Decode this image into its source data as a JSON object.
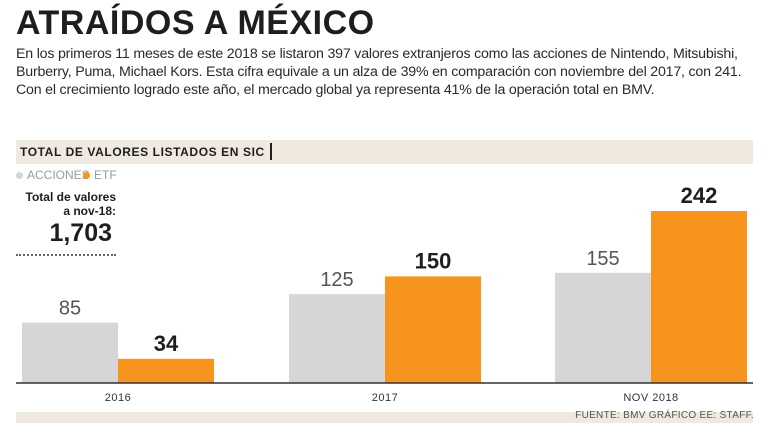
{
  "header": {
    "title": "ATRAÍDOS A MÉXICO",
    "intro": "En los primeros 11 meses de este 2018 se listaron 397 valores extranjeros como las acciones de Nintendo, Mitsubishi, Burberry, Puma, Michael Kors. Esta cifra equivale a un alza de 39% en comparación con noviembre del 2017, con 241. Con el crecimiento logrado este año, el mercado global ya representa 41% de la operación total en BMV."
  },
  "section": {
    "title": "TOTAL DE VALORES LISTADOS EN SIC"
  },
  "total": {
    "label": "Total de valores a nov-18:",
    "value": "1,703"
  },
  "source": "FUENTE: BMV GRÁFICO EE: STAFF.",
  "colors": {
    "acciones": "#d6d6d8",
    "etf": "#f7941d",
    "band": "#efe9df"
  },
  "chart_data": {
    "type": "bar",
    "title": "TOTAL DE VALORES LISTADOS EN SIC",
    "categories": [
      "2016",
      "2017",
      "NOV 2018"
    ],
    "series": [
      {
        "name": "ACCIONES",
        "values": [
          85,
          125,
          155
        ]
      },
      {
        "name": "ETF",
        "values": [
          34,
          150,
          242
        ]
      }
    ],
    "ylim": [
      0,
      242
    ],
    "legend_position": "top-left",
    "grid": false
  }
}
